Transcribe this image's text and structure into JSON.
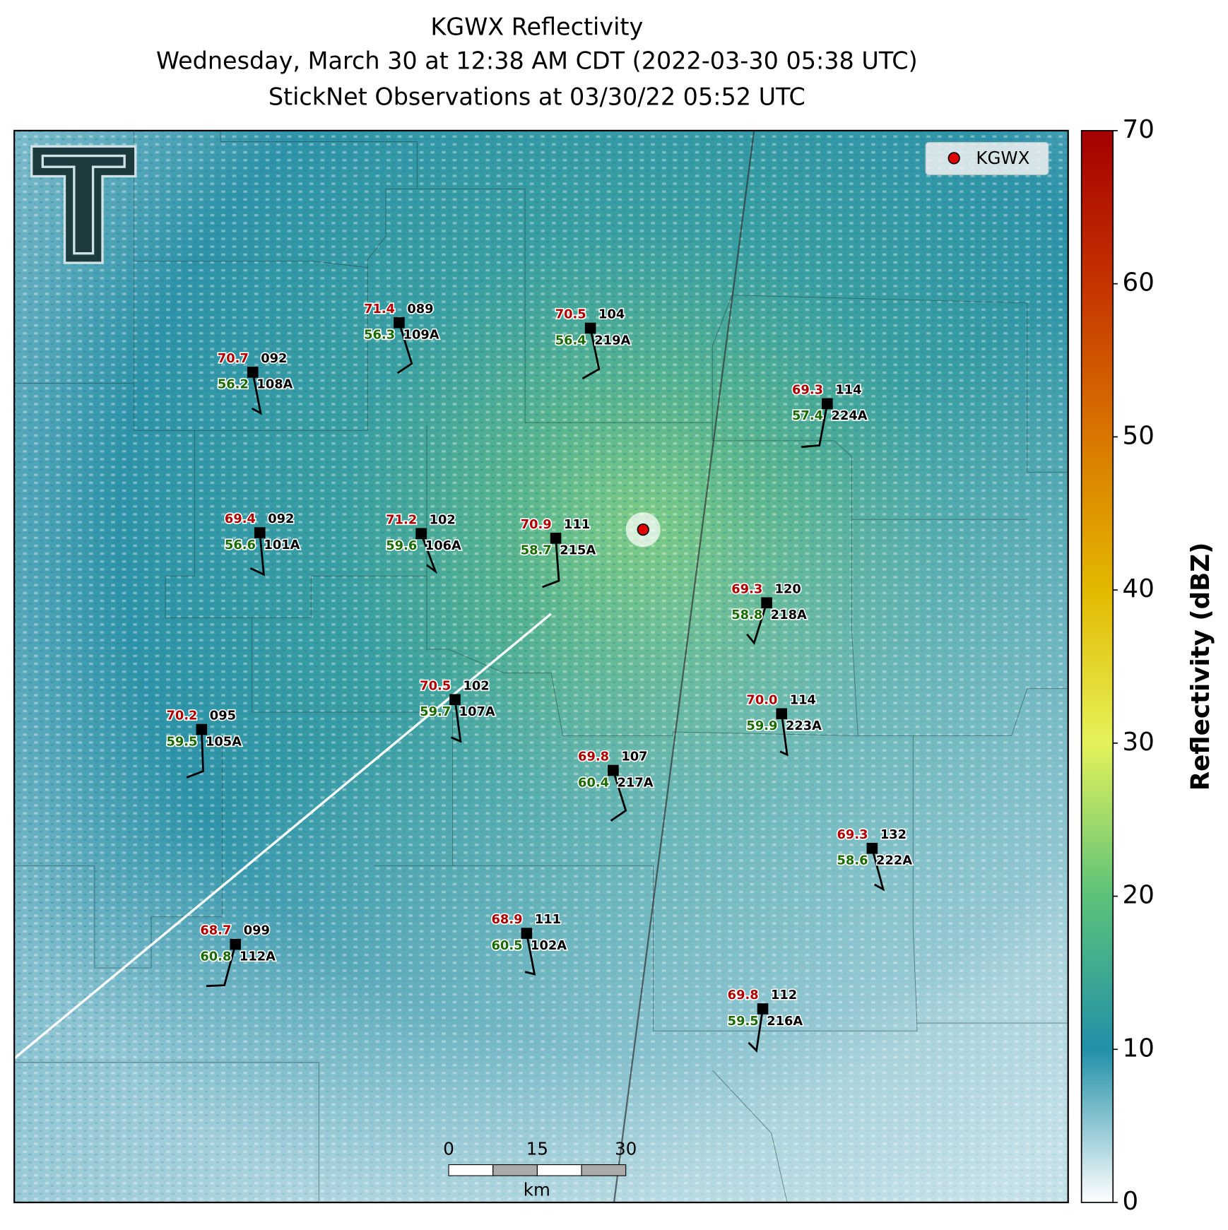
{
  "title": [
    "KGWX Reflectivity",
    "Wednesday, March 30 at 12:38 AM CDT (2022-03-30 05:38 UTC)",
    "StickNet Observations at 03/30/22 05:52 UTC"
  ],
  "legend": "KGWX",
  "colorbar": {
    "label": "Reflectivity (dBZ)",
    "ticks": [
      0,
      10,
      20,
      30,
      40,
      50,
      60,
      70
    ]
  },
  "scalebar": {
    "ticks": [
      0,
      15,
      30
    ],
    "unit": "km"
  },
  "stations": [
    {
      "id": "108A",
      "temperature": "70.7",
      "dewpoint": "56.2",
      "pressure": "092"
    },
    {
      "id": "109A",
      "temperature": "71.4",
      "dewpoint": "56.3",
      "pressure": "089"
    },
    {
      "id": "219A",
      "temperature": "70.5",
      "dewpoint": "56.4",
      "pressure": "104"
    },
    {
      "id": "224A",
      "temperature": "69.3",
      "dewpoint": "57.4",
      "pressure": "114"
    },
    {
      "id": "101A",
      "temperature": "69.4",
      "dewpoint": "56.6",
      "pressure": "092"
    },
    {
      "id": "106A",
      "temperature": "71.2",
      "dewpoint": "59.6",
      "pressure": "102"
    },
    {
      "id": "215A",
      "temperature": "70.9",
      "dewpoint": "58.7",
      "pressure": "111"
    },
    {
      "id": "218A",
      "temperature": "69.3",
      "dewpoint": "58.8",
      "pressure": "120"
    },
    {
      "id": "105A",
      "temperature": "70.2",
      "dewpoint": "59.5",
      "pressure": "095"
    },
    {
      "id": "107A",
      "temperature": "70.5",
      "dewpoint": "59.7",
      "pressure": "102"
    },
    {
      "id": "223A",
      "temperature": "70.0",
      "dewpoint": "59.9",
      "pressure": "114"
    },
    {
      "id": "217A",
      "temperature": "69.8",
      "dewpoint": "60.4",
      "pressure": "107"
    },
    {
      "id": "222A",
      "temperature": "69.3",
      "dewpoint": "58.6",
      "pressure": "132"
    },
    {
      "id": "112A",
      "temperature": "68.7",
      "dewpoint": "60.8",
      "pressure": "099"
    },
    {
      "id": "102A",
      "temperature": "68.9",
      "dewpoint": "60.5",
      "pressure": "111"
    },
    {
      "id": "216A",
      "temperature": "69.8",
      "dewpoint": "59.5",
      "pressure": "112"
    }
  ]
}
